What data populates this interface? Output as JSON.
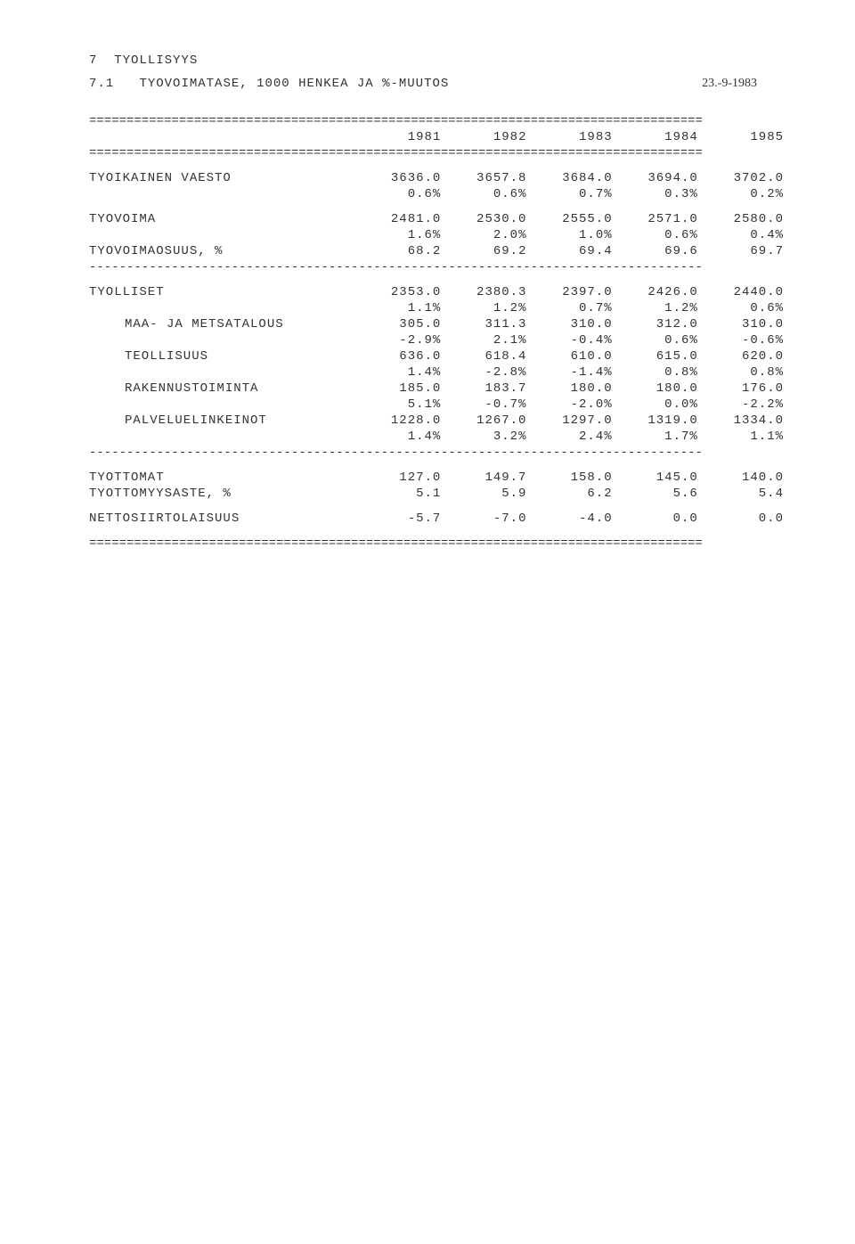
{
  "header": {
    "section_number": "7",
    "section_title": "TYOLLISYYS",
    "subsection_number": "7.1",
    "subsection_title": "TYOVOIMATASE, 1000 HENKEA JA %-MUUTOS",
    "date": "23.-9-1983"
  },
  "table": {
    "years": [
      "1981",
      "1982",
      "1983",
      "1984",
      "1985"
    ],
    "rows": [
      {
        "label": "TYOIKAINEN VAESTO",
        "values": [
          "3636.0",
          "3657.8",
          "3684.0",
          "3694.0",
          "3702.0"
        ],
        "pct": [
          "0.6%",
          "0.6%",
          "0.7%",
          "0.3%",
          "0.2%"
        ]
      },
      {
        "label": "TYOVOIMA",
        "values": [
          "2481.0",
          "2530.0",
          "2555.0",
          "2571.0",
          "2580.0"
        ],
        "pct": [
          "1.6%",
          "2.0%",
          "1.0%",
          "0.6%",
          "0.4%"
        ]
      },
      {
        "label": "TYOVOIMAOSUUS, %",
        "values": [
          "68.2",
          "69.2",
          "69.4",
          "69.6",
          "69.7"
        ]
      },
      {
        "label": "TYOLLISET",
        "values": [
          "2353.0",
          "2380.3",
          "2397.0",
          "2426.0",
          "2440.0"
        ],
        "pct": [
          "1.1%",
          "1.2%",
          "0.7%",
          "1.2%",
          "0.6%"
        ]
      },
      {
        "label": "MAA- JA METSATALOUS",
        "indent": true,
        "values": [
          "305.0",
          "311.3",
          "310.0",
          "312.0",
          "310.0"
        ],
        "pct": [
          "-2.9%",
          "2.1%",
          "-0.4%",
          "0.6%",
          "-0.6%"
        ]
      },
      {
        "label": "TEOLLISUUS",
        "indent": true,
        "values": [
          "636.0",
          "618.4",
          "610.0",
          "615.0",
          "620.0"
        ],
        "pct": [
          "1.4%",
          "-2.8%",
          "-1.4%",
          "0.8%",
          "0.8%"
        ]
      },
      {
        "label": "RAKENNUSTOIMINTA",
        "indent": true,
        "values": [
          "185.0",
          "183.7",
          "180.0",
          "180.0",
          "176.0"
        ],
        "pct": [
          "5.1%",
          "-0.7%",
          "-2.0%",
          "0.0%",
          "-2.2%"
        ]
      },
      {
        "label": "PALVELUELINKEINOT",
        "indent": true,
        "values": [
          "1228.0",
          "1267.0",
          "1297.0",
          "1319.0",
          "1334.0"
        ],
        "pct": [
          "1.4%",
          "3.2%",
          "2.4%",
          "1.7%",
          "1.1%"
        ]
      },
      {
        "label": "TYOTTOMAT",
        "values": [
          "127.0",
          "149.7",
          "158.0",
          "145.0",
          "140.0"
        ]
      },
      {
        "label": "TYOTTOMYYSASTE, %",
        "values": [
          "5.1",
          "5.9",
          "6.2",
          "5.6",
          "5.4"
        ]
      },
      {
        "label": "NETTOSIIRTOLAISUUS",
        "values": [
          "-5.7",
          "-7.0",
          "-4.0",
          "0.0",
          "0.0"
        ]
      }
    ],
    "rules": {
      "double": "==================================================================================",
      "dash": "----------------------------------------------------------------------------------"
    }
  },
  "style": {
    "background_color": "#ffffff",
    "text_color": "#333333",
    "font_family": "Courier New",
    "font_size_pt": 11,
    "date_font_family": "Times New Roman"
  }
}
